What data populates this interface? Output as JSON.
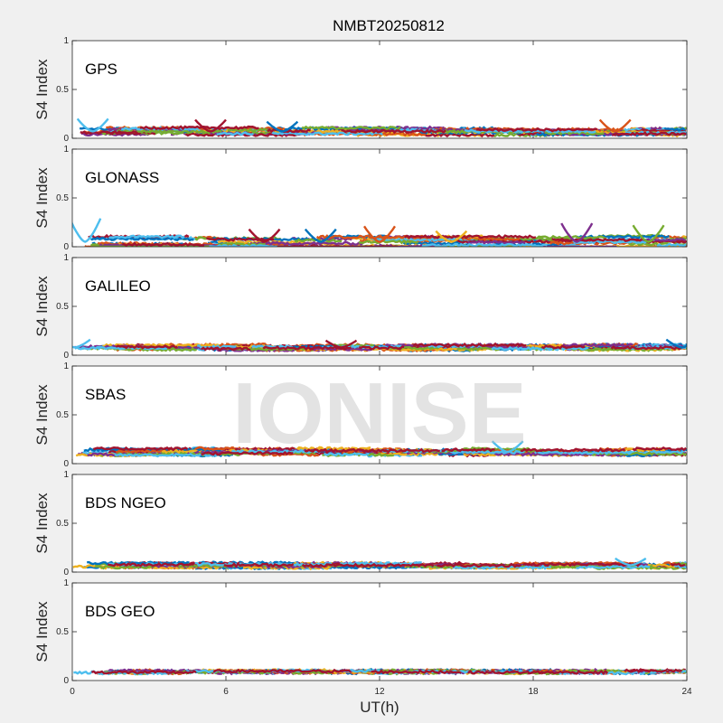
{
  "title": "NMBT20250812",
  "watermark": "IONISE",
  "xlabel": "UT(h)",
  "xlim": [
    0,
    24
  ],
  "xticks": [
    0,
    6,
    12,
    18,
    24
  ],
  "ylabel": "S4 Index",
  "colors": [
    "#0072BD",
    "#D95319",
    "#EDB120",
    "#7E2F8E",
    "#77AC30",
    "#4DBEEE",
    "#A2142F"
  ],
  "chart_data": [
    {
      "type": "line",
      "title": "GPS",
      "xlabel": "UT(h)",
      "ylabel": "S4 Index",
      "xlim": [
        0,
        24
      ],
      "ylim": [
        0,
        1
      ],
      "yticks": [
        0,
        0.5,
        1
      ],
      "x_range": [
        0,
        24
      ],
      "approx_s4_range": [
        0.03,
        0.2
      ],
      "typical_s4": 0.07,
      "notable_peaks": [
        {
          "x": 0.8,
          "y": 0.2
        },
        {
          "x": 5.4,
          "y": 0.19
        },
        {
          "x": 8.2,
          "y": 0.17
        },
        {
          "x": 21.2,
          "y": 0.19
        }
      ]
    },
    {
      "type": "line",
      "title": "GLONASS",
      "xlabel": "UT(h)",
      "ylabel": "S4 Index",
      "xlim": [
        0,
        24
      ],
      "ylim": [
        0,
        1
      ],
      "yticks": [
        0,
        0.5,
        1
      ],
      "x_range": [
        0,
        24
      ],
      "approx_s4_range": [
        0.02,
        0.3
      ],
      "typical_s4": 0.05,
      "notable_peaks": [
        {
          "x": 0.5,
          "y": 0.29
        },
        {
          "x": 7.5,
          "y": 0.18
        },
        {
          "x": 9.7,
          "y": 0.18
        },
        {
          "x": 12.0,
          "y": 0.21
        },
        {
          "x": 14.8,
          "y": 0.16
        },
        {
          "x": 19.7,
          "y": 0.24
        },
        {
          "x": 22.5,
          "y": 0.22
        }
      ]
    },
    {
      "type": "line",
      "title": "GALILEO",
      "xlabel": "UT(h)",
      "ylabel": "S4 Index",
      "xlim": [
        0,
        24
      ],
      "ylim": [
        0,
        1
      ],
      "yticks": [
        0,
        0.5,
        1
      ],
      "x_range": [
        0,
        24
      ],
      "approx_s4_range": [
        0.04,
        0.16
      ],
      "typical_s4": 0.08,
      "notable_peaks": [
        {
          "x": 0.1,
          "y": 0.16
        },
        {
          "x": 10.5,
          "y": 0.15
        },
        {
          "x": 23.8,
          "y": 0.16
        }
      ]
    },
    {
      "type": "line",
      "title": "SBAS",
      "xlabel": "UT(h)",
      "ylabel": "S4 Index",
      "xlim": [
        0,
        24
      ],
      "ylim": [
        0,
        1
      ],
      "yticks": [
        0,
        0.5,
        1
      ],
      "x_range": [
        0,
        24
      ],
      "approx_s4_range": [
        0.08,
        0.24
      ],
      "typical_s4": 0.12,
      "notable_peaks": [
        {
          "x": 17.0,
          "y": 0.23
        }
      ]
    },
    {
      "type": "line",
      "title": "BDS NGEO",
      "xlabel": "UT(h)",
      "ylabel": "S4 Index",
      "xlim": [
        0,
        24
      ],
      "ylim": [
        0,
        1
      ],
      "yticks": [
        0,
        0.5,
        1
      ],
      "x_range": [
        0,
        24
      ],
      "approx_s4_range": [
        0.03,
        0.15
      ],
      "typical_s4": 0.07,
      "notable_peaks": [
        {
          "x": 21.8,
          "y": 0.14
        }
      ]
    },
    {
      "type": "line",
      "title": "BDS GEO",
      "xlabel": "UT(h)",
      "ylabel": "S4 Index",
      "xlim": [
        0,
        24
      ],
      "ylim": [
        0,
        1
      ],
      "yticks": [
        0,
        0.5,
        1
      ],
      "x_range": [
        0,
        24
      ],
      "approx_s4_range": [
        0.06,
        0.12
      ],
      "typical_s4": 0.09,
      "notable_peaks": []
    }
  ]
}
